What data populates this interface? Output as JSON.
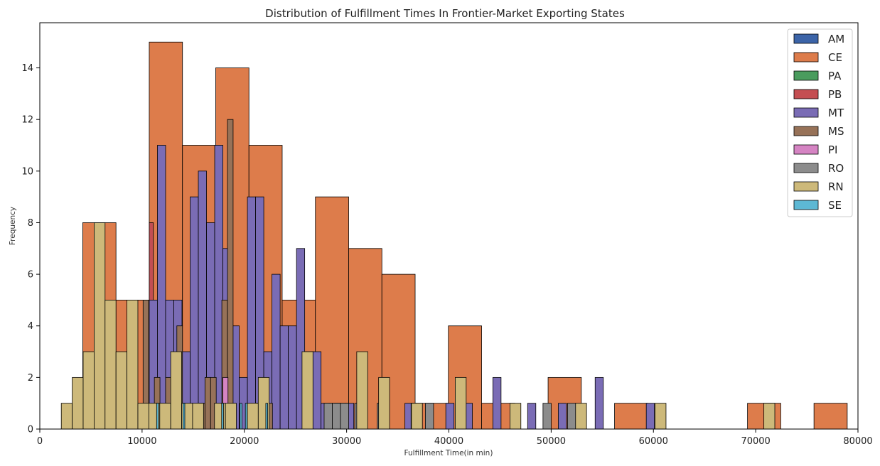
{
  "chart_data": {
    "type": "histogram",
    "title": "Distribution of Fulfillment Times In Frontier-Market Exporting States",
    "xlabel": "Fulfillment Time(in min)",
    "ylabel": "Frequency",
    "xlim": [
      0,
      80000
    ],
    "ylim": [
      0,
      15.75
    ],
    "xticks": [
      0,
      10000,
      20000,
      30000,
      40000,
      50000,
      60000,
      70000,
      80000
    ],
    "yticks": [
      0,
      2,
      4,
      6,
      8,
      10,
      12,
      14
    ],
    "grid": false,
    "legend_position": "top-right",
    "edge_color": "#000000",
    "series": [
      {
        "name": "AM",
        "color": "#3c64a8",
        "bins": []
      },
      {
        "name": "CE",
        "color": "#dd7c4b",
        "bins": [
          [
            4200,
            7450,
            8
          ],
          [
            7450,
            10700,
            5
          ],
          [
            10700,
            13950,
            15
          ],
          [
            13950,
            17200,
            11
          ],
          [
            17200,
            20450,
            14
          ],
          [
            20450,
            23700,
            11
          ],
          [
            23700,
            26950,
            5
          ],
          [
            26950,
            30200,
            9
          ],
          [
            30200,
            33450,
            7
          ],
          [
            33450,
            36700,
            6
          ],
          [
            36700,
            39950,
            1
          ],
          [
            39950,
            43200,
            4
          ],
          [
            43200,
            46450,
            1
          ],
          [
            46450,
            49700,
            0
          ],
          [
            49700,
            52950,
            2
          ],
          [
            52950,
            56200,
            0
          ],
          [
            56200,
            59450,
            1
          ],
          [
            59450,
            62700,
            0
          ],
          [
            62700,
            65950,
            0
          ],
          [
            65950,
            69200,
            0
          ],
          [
            69200,
            72450,
            1
          ],
          [
            72450,
            75700,
            0
          ],
          [
            75700,
            78950,
            1
          ]
        ]
      },
      {
        "name": "PA",
        "color": "#4a9c5e",
        "bins": []
      },
      {
        "name": "PB",
        "color": "#c44e52",
        "bins": [
          [
            10700,
            11100,
            8
          ]
        ]
      },
      {
        "name": "MT",
        "color": "#7a6cb5",
        "bins": [
          [
            10700,
            11500,
            5
          ],
          [
            11500,
            12300,
            11
          ],
          [
            12300,
            13100,
            5
          ],
          [
            13100,
            13900,
            5
          ],
          [
            13900,
            14700,
            3
          ],
          [
            14700,
            15500,
            9
          ],
          [
            15500,
            16300,
            10
          ],
          [
            16300,
            17100,
            8
          ],
          [
            17100,
            17900,
            11
          ],
          [
            17900,
            18700,
            7
          ],
          [
            18700,
            19500,
            4
          ],
          [
            19500,
            20300,
            2
          ],
          [
            20300,
            21100,
            9
          ],
          [
            21100,
            21900,
            9
          ],
          [
            21900,
            22700,
            3
          ],
          [
            22700,
            23500,
            6
          ],
          [
            23500,
            24300,
            4
          ],
          [
            24300,
            25100,
            4
          ],
          [
            25100,
            25900,
            7
          ],
          [
            25900,
            26700,
            3
          ],
          [
            26700,
            27500,
            3
          ],
          [
            27500,
            28300,
            1
          ],
          [
            28300,
            29100,
            1
          ],
          [
            29100,
            29900,
            1
          ],
          [
            29900,
            30700,
            1
          ],
          [
            35700,
            36500,
            1
          ],
          [
            39700,
            40500,
            1
          ],
          [
            41500,
            42300,
            1
          ],
          [
            44300,
            45100,
            2
          ],
          [
            47700,
            48500,
            1
          ],
          [
            50700,
            51500,
            1
          ],
          [
            54300,
            55100,
            2
          ],
          [
            59300,
            60100,
            1
          ]
        ]
      },
      {
        "name": "MS",
        "color": "#977258",
        "bins": [
          [
            10100,
            10650,
            5
          ],
          [
            11200,
            11750,
            2
          ],
          [
            12300,
            12850,
            2
          ],
          [
            12850,
            13400,
            2
          ],
          [
            13400,
            13950,
            4
          ],
          [
            15600,
            16150,
            1
          ],
          [
            16150,
            16700,
            2
          ],
          [
            16700,
            17250,
            2
          ],
          [
            17800,
            18350,
            5
          ],
          [
            18350,
            18900,
            12
          ],
          [
            21100,
            21650,
            1
          ],
          [
            22200,
            22750,
            1
          ],
          [
            28800,
            29350,
            1
          ]
        ]
      },
      {
        "name": "PI",
        "color": "#d584c3",
        "bins": [
          [
            17900,
            18400,
            2
          ],
          [
            36300,
            36800,
            1
          ]
        ]
      },
      {
        "name": "RO",
        "color": "#8c8c8c",
        "bins": [
          [
            27800,
            28600,
            1
          ],
          [
            28600,
            29400,
            1
          ],
          [
            29400,
            30200,
            1
          ],
          [
            30800,
            31600,
            1
          ],
          [
            33000,
            33800,
            1
          ],
          [
            37700,
            38500,
            1
          ],
          [
            49200,
            50000,
            1
          ],
          [
            51600,
            52400,
            1
          ]
        ]
      },
      {
        "name": "RN",
        "color": "#cdb97a",
        "bins": [
          [
            2100,
            3170,
            1
          ],
          [
            3170,
            4240,
            2
          ],
          [
            4240,
            5310,
            3
          ],
          [
            5310,
            6380,
            8
          ],
          [
            6380,
            7450,
            5
          ],
          [
            7450,
            8520,
            3
          ],
          [
            8520,
            9590,
            5
          ],
          [
            9590,
            10660,
            1
          ],
          [
            10660,
            11730,
            1
          ],
          [
            11730,
            12800,
            1
          ],
          [
            12800,
            13870,
            3
          ],
          [
            13870,
            14940,
            1
          ],
          [
            14940,
            16010,
            1
          ],
          [
            17080,
            18150,
            1
          ],
          [
            18150,
            19220,
            1
          ],
          [
            20290,
            21360,
            1
          ],
          [
            21360,
            22430,
            2
          ],
          [
            25640,
            26710,
            3
          ],
          [
            30990,
            32060,
            3
          ],
          [
            33130,
            34200,
            2
          ],
          [
            36340,
            37410,
            1
          ],
          [
            40620,
            41690,
            2
          ],
          [
            45970,
            47040,
            1
          ],
          [
            52390,
            53460,
            1
          ],
          [
            60150,
            61230,
            1
          ],
          [
            70800,
            71870,
            1
          ]
        ]
      },
      {
        "name": "SE",
        "color": "#5db8d4",
        "bins": [
          [
            11420,
            11600,
            1
          ],
          [
            14000,
            14180,
            1
          ],
          [
            17780,
            17960,
            1
          ],
          [
            19580,
            19760,
            1
          ],
          [
            20100,
            20280,
            1
          ],
          [
            22100,
            22280,
            1
          ]
        ]
      }
    ]
  }
}
